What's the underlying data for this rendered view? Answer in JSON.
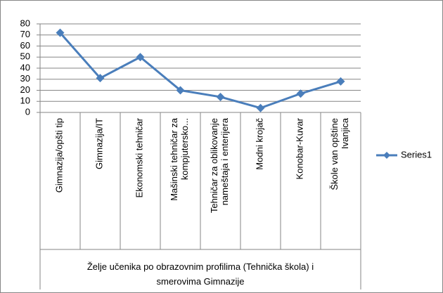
{
  "chart_data": {
    "type": "line",
    "categories": [
      "Gimnazija/opšti tip",
      "Gimnazija/IT",
      "Ekonomski tehničar",
      "Mašinski tehničar za kompjutersko...",
      "Tehničar za oblikovanje nameštaja i enterijera",
      "Modni krojač",
      "Konobar-Kuvar",
      "Škole van opštine Ivanjica"
    ],
    "series": [
      {
        "name": "Series1",
        "color": "#4a7ebb",
        "values": [
          72,
          31,
          50,
          20,
          14,
          4,
          17,
          28
        ]
      }
    ],
    "x_label": "Želje učenika po obrazovnim profilima (Tehnička škola) i smerovima Gimnazije",
    "ylim": [
      0,
      80
    ],
    "yticks": [
      0,
      10,
      20,
      30,
      40,
      50,
      60,
      70,
      80
    ],
    "grid": true,
    "legend": "right"
  }
}
